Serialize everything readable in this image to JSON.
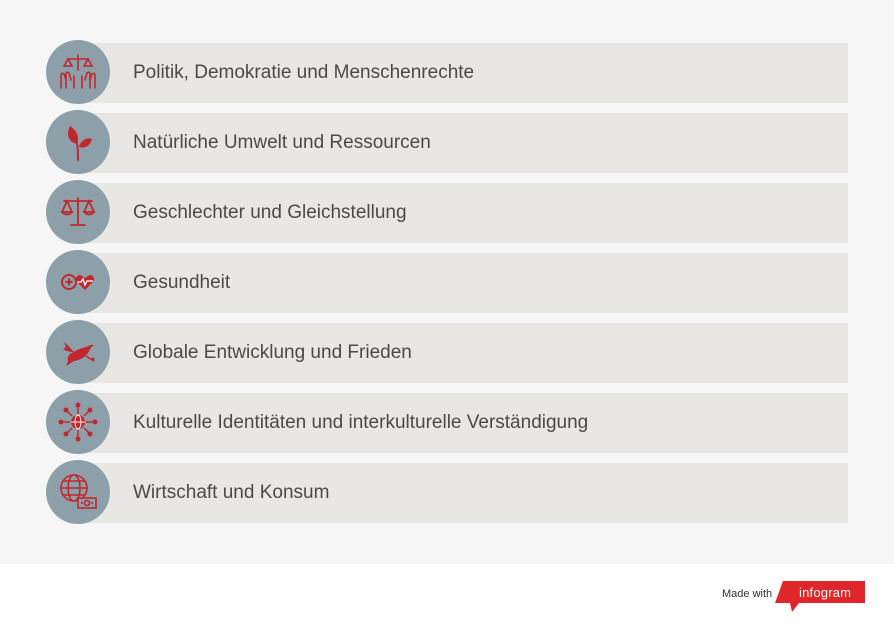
{
  "topics": [
    {
      "label": "Politik, Demokratie und Menschenrechte",
      "icon": "justice-hands-icon"
    },
    {
      "label": "Natürliche Umwelt und Ressourcen",
      "icon": "plant-leaf-icon"
    },
    {
      "label": "Geschlechter und Gleichstellung",
      "icon": "balance-scale-icon"
    },
    {
      "label": "Gesundheit",
      "icon": "health-heart-icon"
    },
    {
      "label": "Globale Entwicklung und Frieden",
      "icon": "peace-dove-icon"
    },
    {
      "label": "Kulturelle Identitäten und interkulturelle Verständigung",
      "icon": "globe-network-icon"
    },
    {
      "label": "Wirtschaft und Konsum",
      "icon": "globe-money-icon"
    }
  ],
  "footer": {
    "made_with": "Made with",
    "brand": "infogram"
  },
  "colors": {
    "icon_circle": "#8da0aa",
    "icon_glyph": "#c0282d",
    "row_background": "#e9e7e3",
    "brand_red": "#e0262a"
  }
}
